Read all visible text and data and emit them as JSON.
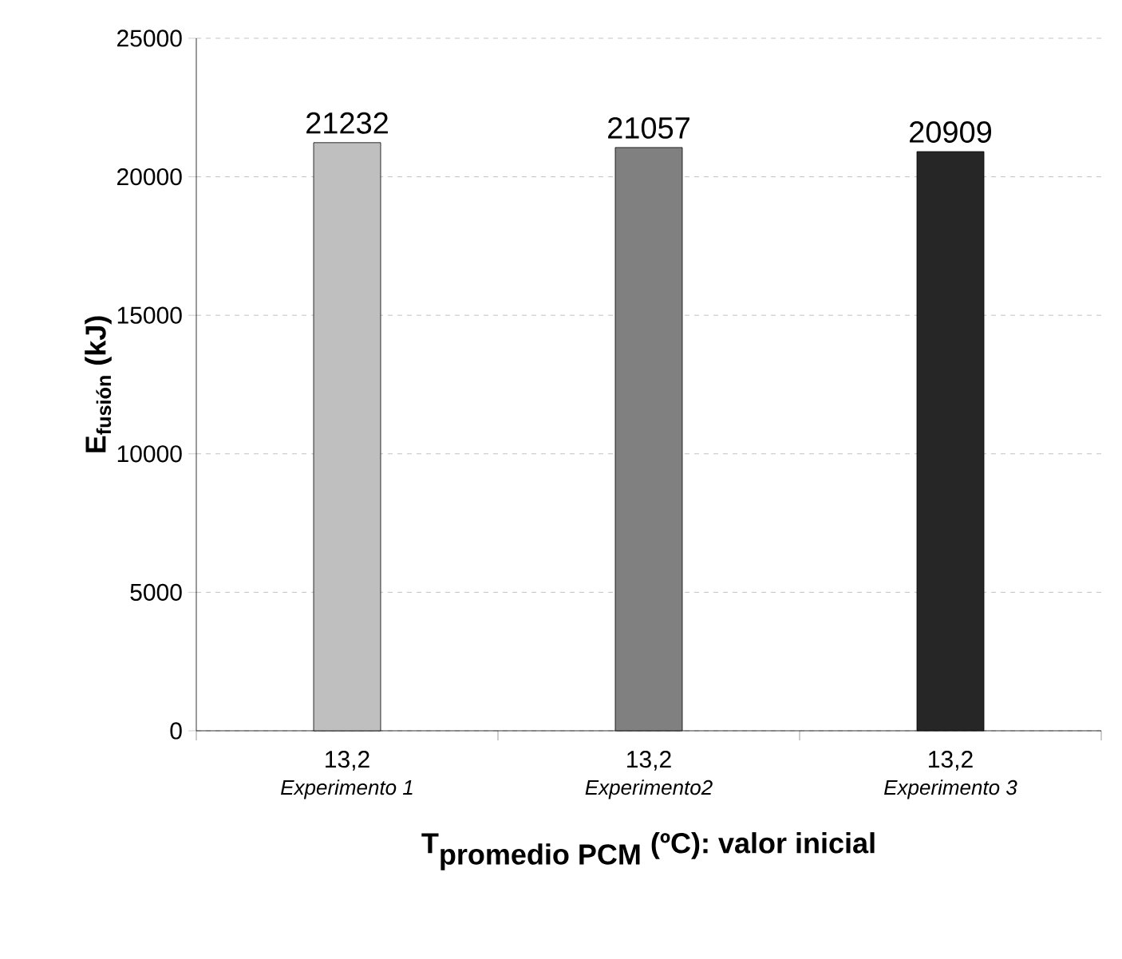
{
  "chart_data": {
    "type": "bar",
    "xlabel": "\\textbf{T}_{\\textbf{promedio PCM}}\\textbf{ (ºC): valor inicial}",
    "ylabel": "E$_{fusión}$ (kJ)",
    "categories": [
      "13,2",
      "13,2",
      "13,2"
    ],
    "annotations": [
      "Experimento 1",
      "Experimento2",
      "Experimento 3"
    ],
    "values": [
      21232,
      21057,
      20909
    ],
    "colors": [
      "#bfbfbf",
      "#808080",
      "#262626"
    ],
    "ylim": [
      0,
      25000
    ],
    "yticks": [
      0,
      5000,
      10000,
      15000,
      20000,
      25000
    ],
    "grid": "y",
    "data_labels": true
  }
}
